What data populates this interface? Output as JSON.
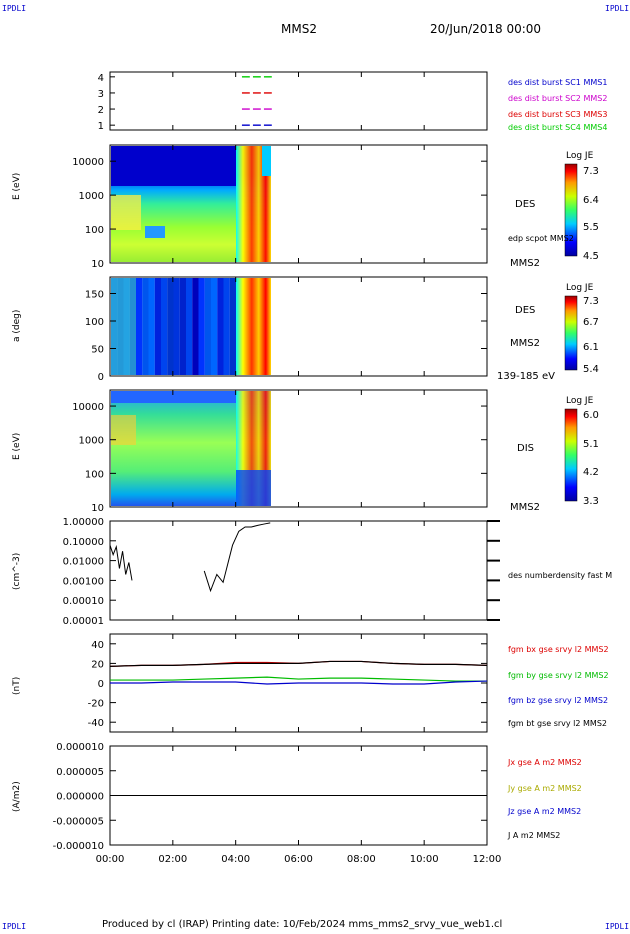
{
  "header": {
    "corner_tl": "IPDLI",
    "corner_tr": "IPDLI",
    "corner_bl": "IPDLI",
    "corner_br": "IPDLI",
    "spacecraft": "MMS2",
    "datetime": "20/Jun/2018 00:00"
  },
  "footer": {
    "text": "Produced by cl (IRAP)   Printing date: 10/Feb/2024   mms_mms2_srvy_vue_web1.cl"
  },
  "chart_data": [
    {
      "type": "scatter",
      "panel": "burst-availability",
      "yticks": [
        "1",
        "2",
        "3",
        "4"
      ],
      "legend": [
        {
          "name": "des dist burst SC1 MMS1",
          "color": "#0000cc",
          "level": 1
        },
        {
          "name": "des dist burst SC2 MMS2",
          "color": "#cc00cc",
          "level": 2
        },
        {
          "name": "des dist burst SC3 MMS3",
          "color": "#dd0000",
          "level": 3
        },
        {
          "name": "des dist burst SC4 MMS4",
          "color": "#00cc00",
          "level": 4
        }
      ],
      "segments_hours": [
        [
          4.2,
          4.45
        ],
        [
          4.55,
          4.8
        ],
        [
          4.9,
          5.15
        ]
      ]
    },
    {
      "type": "heatmap",
      "panel": "des-energy",
      "ylabel": "E (eV)",
      "yticks": [
        "10",
        "100",
        "1000",
        "10000"
      ],
      "right_labels": [
        "DES",
        "edp scpot MMS2",
        "MMS2"
      ],
      "colorbar": {
        "title": "Log JE",
        "ticks": [
          "7.3",
          "6.4",
          "5.5",
          "4.5"
        ]
      }
    },
    {
      "type": "heatmap",
      "panel": "des-pitch",
      "ylabel": "a (deg)",
      "yticks": [
        "0",
        "50",
        "100",
        "150"
      ],
      "right_labels": [
        "DES",
        "MMS2",
        "139-185 eV"
      ],
      "colorbar": {
        "title": "Log JE",
        "ticks": [
          "7.3",
          "6.7",
          "6.1",
          "5.4"
        ]
      }
    },
    {
      "type": "heatmap",
      "panel": "dis-energy",
      "ylabel": "E (eV)",
      "yticks": [
        "10",
        "100",
        "1000",
        "10000"
      ],
      "right_labels": [
        "DIS",
        "MMS2"
      ],
      "colorbar": {
        "title": "Log JE",
        "ticks": [
          "6.0",
          "5.1",
          "4.2",
          "3.3"
        ]
      }
    },
    {
      "type": "line",
      "panel": "density",
      "ylabel": "(cm^-3)",
      "yscale": "log",
      "ylim": [
        1e-05,
        1.0
      ],
      "yticks": [
        "1.00000",
        "0.10000",
        "0.01000",
        "0.00100",
        "0.00010",
        "0.00001"
      ],
      "legend": [
        {
          "name": "des numberdensity fast M",
          "color": "#000000"
        }
      ],
      "series": [
        {
          "name": "des numberdensity fast M",
          "x": [
            0.0,
            0.1,
            0.2,
            0.3,
            0.4,
            0.5,
            0.6,
            0.7,
            3.0,
            3.2,
            3.4,
            3.6,
            3.9,
            4.1,
            4.3,
            4.5,
            4.7,
            4.9,
            5.1
          ],
          "y": [
            0.06,
            0.02,
            0.05,
            0.004,
            0.03,
            0.002,
            0.008,
            0.001,
            0.003,
            0.0003,
            0.002,
            0.0008,
            0.06,
            0.3,
            0.5,
            0.5,
            0.6,
            0.7,
            0.8
          ]
        }
      ]
    },
    {
      "type": "line",
      "panel": "magnetic-field",
      "ylabel": "(nT)",
      "ylim": [
        -50,
        50
      ],
      "yticks": [
        "40",
        "20",
        "0",
        "-20",
        "-40"
      ],
      "legend": [
        {
          "name": "fgm bx gse srvy l2 MMS2",
          "color": "#dd0000"
        },
        {
          "name": "fgm by gse srvy l2 MMS2",
          "color": "#00bb00"
        },
        {
          "name": "fgm bz gse srvy l2 MMS2",
          "color": "#0000cc"
        },
        {
          "name": "fgm bt gse srvy l2 MMS2",
          "color": "#000000"
        }
      ],
      "x": [
        0,
        1,
        2,
        3,
        4,
        5,
        6,
        7,
        8,
        9,
        10,
        11,
        12
      ],
      "series": [
        {
          "name": "fgm bx gse srvy l2 MMS2",
          "values": [
            17,
            18,
            18,
            19,
            21,
            21,
            20,
            22,
            22,
            20,
            19,
            19,
            18
          ]
        },
        {
          "name": "fgm by gse srvy l2 MMS2",
          "values": [
            3,
            3,
            3,
            4,
            5,
            6,
            4,
            5,
            5,
            4,
            3,
            2,
            2
          ]
        },
        {
          "name": "fgm bz gse srvy l2 MMS2",
          "values": [
            0,
            0,
            1,
            1,
            1,
            -1,
            0,
            0,
            0,
            -1,
            -1,
            1,
            2
          ]
        },
        {
          "name": "fgm bt gse srvy l2 MMS2",
          "values": [
            17,
            18,
            18,
            19,
            20,
            20,
            20,
            22,
            22,
            20,
            19,
            19,
            18
          ]
        }
      ]
    },
    {
      "type": "line",
      "panel": "current-density",
      "ylabel": "(A/m2)",
      "ylim": [
        -1e-05,
        1e-05
      ],
      "yticks": [
        "0.000010",
        "0.000005",
        "0.000000",
        "-0.000005",
        "-0.000010"
      ],
      "legend": [
        {
          "name": "Jx gse A m2 MMS2",
          "color": "#dd0000"
        },
        {
          "name": "Jy gse A m2 MMS2",
          "color": "#cccc00"
        },
        {
          "name": "Jz gse A m2 MMS2",
          "color": "#0000cc"
        },
        {
          "name": "J A m2 MMS2",
          "color": "#000000"
        }
      ]
    }
  ],
  "xaxis": {
    "ticks": [
      "00:00",
      "02:00",
      "04:00",
      "06:00",
      "08:00",
      "10:00",
      "12:00"
    ],
    "range_hours": [
      0,
      12
    ]
  }
}
